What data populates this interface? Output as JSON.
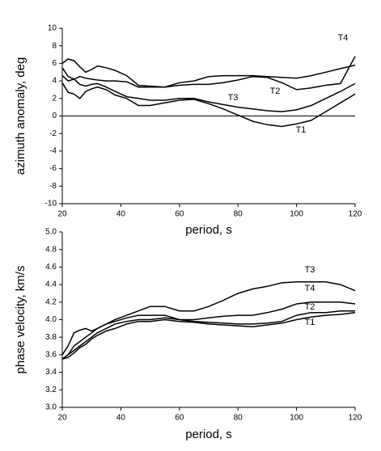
{
  "chart_data": [
    {
      "type": "line",
      "xlabel": "period, s",
      "ylabel": "azimuth anomaly, deg",
      "x": [
        20,
        22,
        24,
        26,
        28,
        30,
        32,
        35,
        38,
        42,
        46,
        50,
        55,
        60,
        65,
        70,
        75,
        80,
        85,
        90,
        95,
        100,
        105,
        110,
        115,
        120
      ],
      "xlim": [
        20,
        120
      ],
      "xticks": [
        20,
        40,
        60,
        80,
        100,
        120
      ],
      "ylim": [
        -10,
        10
      ],
      "yticks": [
        -10,
        -8,
        -6,
        -4,
        -2,
        0,
        2,
        4,
        6,
        8,
        10
      ],
      "hline": 0,
      "series": [
        {
          "name": "T1",
          "color": "#000000",
          "values": [
            3.8,
            2.7,
            2.5,
            2.0,
            2.8,
            3.1,
            3.3,
            3.0,
            2.4,
            2.0,
            1.2,
            1.2,
            1.5,
            1.8,
            1.9,
            1.4,
            0.8,
            0.1,
            -0.6,
            -1.0,
            -1.2,
            -0.9,
            -0.5,
            0.5,
            1.5,
            2.5
          ]
        },
        {
          "name": "T2",
          "color": "#000000",
          "values": [
            5.5,
            4.5,
            4.2,
            4.5,
            4.3,
            4.2,
            4.1,
            4.0,
            4.0,
            3.9,
            3.3,
            3.3,
            3.3,
            3.5,
            3.6,
            3.6,
            3.8,
            4.1,
            4.5,
            4.4,
            3.8,
            3.0,
            3.2,
            3.5,
            3.7,
            6.8
          ]
        },
        {
          "name": "T3",
          "color": "#000000",
          "values": [
            4.6,
            4.0,
            4.2,
            3.6,
            3.4,
            3.6,
            3.7,
            3.3,
            2.8,
            2.2,
            2.0,
            1.8,
            1.8,
            2.0,
            2.0,
            1.6,
            1.3,
            1.0,
            0.8,
            0.6,
            0.5,
            0.7,
            1.2,
            2.0,
            2.8,
            3.7
          ]
        },
        {
          "name": "T4",
          "color": "#000000",
          "values": [
            6.0,
            6.5,
            6.3,
            5.6,
            5.0,
            5.3,
            5.7,
            5.5,
            5.2,
            4.6,
            3.5,
            3.4,
            3.3,
            3.8,
            4.0,
            4.5,
            4.6,
            4.6,
            4.6,
            4.5,
            4.4,
            4.3,
            4.6,
            5.0,
            5.4,
            5.8
          ]
        }
      ]
    },
    {
      "type": "line",
      "xlabel": "period, s",
      "ylabel": "phase velocity, km/s",
      "x": [
        20,
        22,
        24,
        26,
        28,
        30,
        32,
        35,
        38,
        42,
        46,
        50,
        55,
        60,
        65,
        70,
        75,
        80,
        85,
        90,
        95,
        100,
        105,
        110,
        115,
        120
      ],
      "xlim": [
        20,
        120
      ],
      "xticks": [
        20,
        40,
        60,
        80,
        100,
        120
      ],
      "ylim": [
        3,
        5
      ],
      "yticks": [
        {
          "value": 3,
          "label": "3.0"
        },
        3.2,
        3.4,
        3.6,
        3.8,
        {
          "value": 4,
          "label": "4.0"
        },
        4.2,
        4.4,
        4.6,
        4.8,
        {
          "value": 5,
          "label": "5.0"
        }
      ],
      "series": [
        {
          "name": "T1",
          "color": "#000000",
          "values": [
            3.55,
            3.57,
            3.62,
            3.68,
            3.72,
            3.78,
            3.82,
            3.87,
            3.9,
            3.95,
            3.98,
            3.98,
            4.0,
            3.98,
            3.97,
            3.95,
            3.94,
            3.93,
            3.92,
            3.94,
            3.96,
            4.0,
            4.03,
            4.05,
            4.06,
            4.08
          ]
        },
        {
          "name": "T2",
          "color": "#000000",
          "values": [
            3.55,
            3.6,
            3.65,
            3.7,
            3.75,
            3.8,
            3.85,
            3.9,
            3.95,
            3.98,
            4.0,
            4.0,
            4.02,
            4.0,
            3.98,
            3.97,
            3.96,
            3.95,
            3.95,
            3.96,
            3.98,
            4.05,
            4.08,
            4.08,
            4.1,
            4.1
          ]
        },
        {
          "name": "T3",
          "color": "#000000",
          "values": [
            3.6,
            3.7,
            3.85,
            3.88,
            3.9,
            3.87,
            3.9,
            3.95,
            4.0,
            4.05,
            4.1,
            4.15,
            4.15,
            4.1,
            4.1,
            4.15,
            4.22,
            4.3,
            4.35,
            4.38,
            4.42,
            4.43,
            4.43,
            4.43,
            4.4,
            4.33
          ]
        },
        {
          "name": "T4",
          "color": "#000000",
          "values": [
            3.55,
            3.6,
            3.7,
            3.75,
            3.8,
            3.85,
            3.9,
            3.95,
            3.98,
            4.02,
            4.05,
            4.05,
            4.05,
            4.0,
            4.0,
            4.02,
            4.04,
            4.05,
            4.05,
            4.08,
            4.12,
            4.18,
            4.2,
            4.2,
            4.2,
            4.18
          ]
        }
      ]
    }
  ]
}
